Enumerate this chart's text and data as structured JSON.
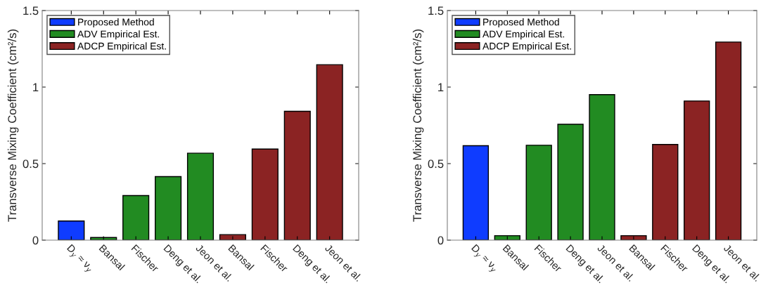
{
  "chart_data": [
    {
      "type": "bar",
      "ylabel": "Transverse Mixing Coefficient (cm²/s)",
      "categories": [
        "D$_{y}$ ≈ ν$_{y}$",
        "Bansal",
        "Fischer",
        "Deng et al.",
        "Jeon et al.",
        "Bansal",
        "Fischer",
        "Deng et al.",
        "Jeon et al."
      ],
      "ylim": [
        0,
        1.5
      ],
      "yticks": [
        0,
        0.5,
        1,
        1.5
      ],
      "grid": false,
      "legend": "top left",
      "series": [
        {
          "name": "Proposed Method",
          "color": "#0f3cff",
          "values": [
            0.125,
            null,
            null,
            null,
            null,
            null,
            null,
            null,
            null
          ]
        },
        {
          "name": "ADV Empirical Est.",
          "color": "#228b22",
          "values": [
            null,
            0.017,
            0.291,
            0.415,
            0.568,
            null,
            null,
            null,
            null
          ]
        },
        {
          "name": "ADCP Empirical Est.",
          "color": "#8b2323",
          "values": [
            null,
            null,
            null,
            null,
            null,
            0.036,
            0.595,
            0.842,
            1.146
          ]
        }
      ]
    },
    {
      "type": "bar",
      "ylabel": "Transverse Mixing Coefficient (cm²/s)",
      "categories": [
        "D$_{y}$ ≈ ν$_{y}$",
        "Bansal",
        "Fischer",
        "Deng et al.",
        "Jeon et al.",
        "Bansal",
        "Fischer",
        "Deng et al.",
        "Jeon et al."
      ],
      "ylim": [
        0,
        1.5
      ],
      "yticks": [
        0,
        0.5,
        1,
        1.5
      ],
      "grid": false,
      "legend": "top left",
      "series": [
        {
          "name": "Proposed Method",
          "color": "#0f3cff",
          "values": [
            0.617,
            null,
            null,
            null,
            null,
            null,
            null,
            null,
            null
          ]
        },
        {
          "name": "ADV Empirical Est.",
          "color": "#228b22",
          "values": [
            null,
            0.029,
            0.62,
            0.757,
            0.951,
            null,
            null,
            null,
            null
          ]
        },
        {
          "name": "ADCP Empirical Est.",
          "color": "#8b2323",
          "values": [
            null,
            null,
            null,
            null,
            null,
            0.029,
            0.625,
            0.909,
            1.294
          ]
        }
      ]
    }
  ]
}
